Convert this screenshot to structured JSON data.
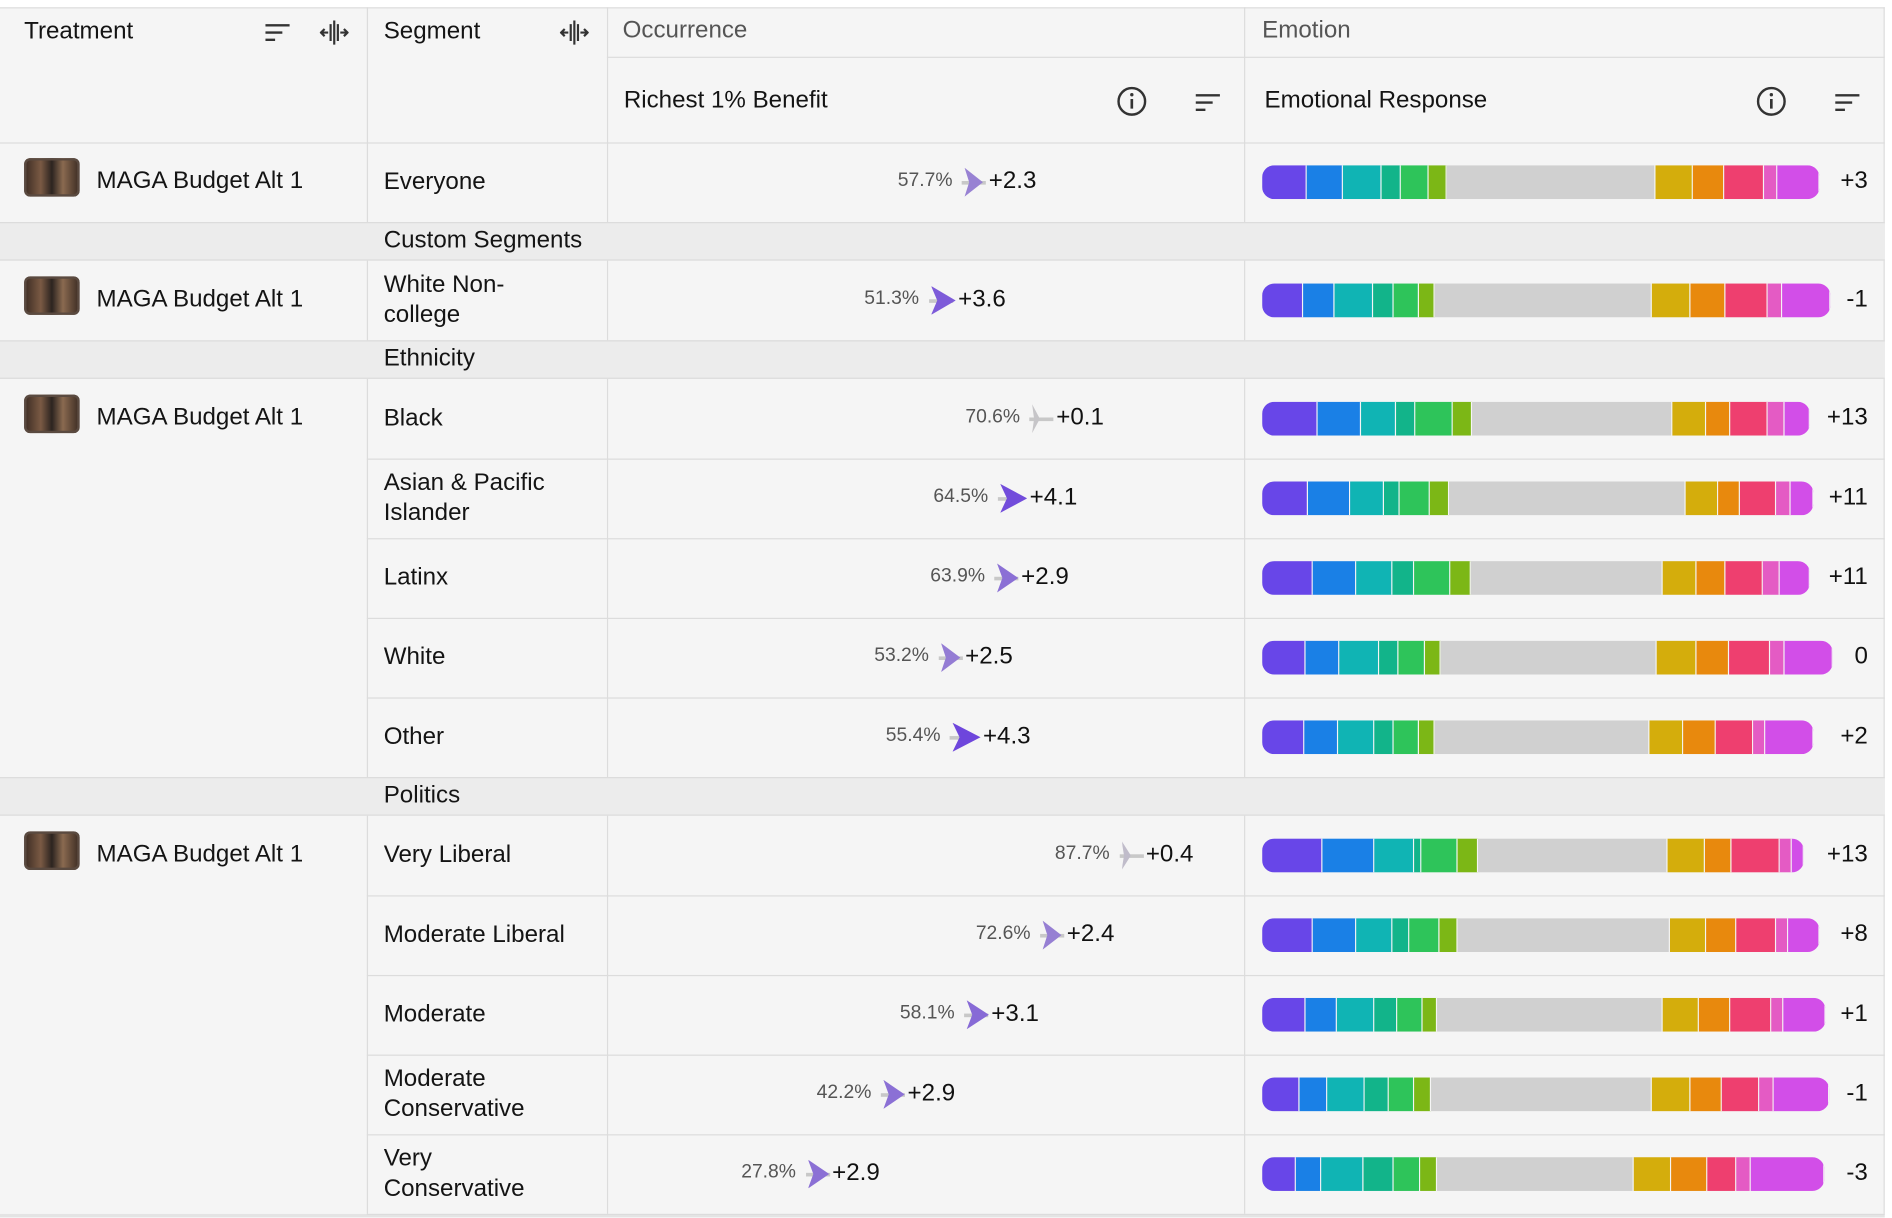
{
  "header": {
    "groups": [
      "Occurrence",
      "Emotion"
    ],
    "columns": [
      "Treatment",
      "Segment",
      "Richest 1% Benefit",
      "Emotional Response"
    ]
  },
  "emotion_colors": [
    "#6846e8",
    "#1a80e6",
    "#10b4b4",
    "#12b48a",
    "#2ec45a",
    "#7cb716",
    "#d0d0d0",
    "#d4ad0c",
    "#e8890d",
    "#ee3f6f",
    "#e45bc4",
    "#d24ee8"
  ],
  "rows": [
    {
      "treatment": "MAGA Budget Alt 1",
      "segment": "Everyone",
      "occurrence": "57.7%",
      "delta": "+2.3",
      "emotion": [
        37,
        30,
        32,
        16,
        23,
        15,
        173,
        31,
        26,
        33,
        11,
        35
      ],
      "score": "+3"
    },
    {
      "group": "Custom Segments"
    },
    {
      "treatment": "MAGA Budget Alt 1",
      "segment": "White Non-\ncollege",
      "occurrence": "51.3%",
      "delta": "+3.6",
      "emotion": [
        34,
        26,
        32,
        17,
        21,
        13,
        180,
        32,
        29,
        35,
        12,
        40
      ],
      "score": "-1"
    },
    {
      "group": "Ethnicity"
    },
    {
      "treatment": "MAGA Budget Alt 1",
      "segment": "Black",
      "occurrence": "70.6%",
      "delta": "+0.1",
      "emotion": [
        46,
        36,
        29,
        16,
        31,
        16,
        166,
        28,
        20,
        31,
        14,
        21
      ],
      "score": "+13"
    },
    {
      "segment": "Asian & Pacific\nIslander",
      "occurrence": "64.5%",
      "delta": "+4.1",
      "emotion": [
        38,
        35,
        28,
        13,
        25,
        16,
        196,
        27,
        18,
        30,
        12,
        19
      ],
      "score": "+11"
    },
    {
      "segment": "Latinx",
      "occurrence": "63.9%",
      "delta": "+2.9",
      "emotion": [
        42,
        36,
        30,
        18,
        30,
        17,
        159,
        28,
        24,
        31,
        14,
        25
      ],
      "score": "+11"
    },
    {
      "segment": "White",
      "occurrence": "53.2%",
      "delta": "+2.5",
      "emotion": [
        36,
        28,
        33,
        16,
        22,
        13,
        179,
        33,
        27,
        34,
        12,
        40
      ],
      "score": "0"
    },
    {
      "segment": "Other",
      "occurrence": "55.4%",
      "delta": "+4.3",
      "emotion": [
        35,
        28,
        30,
        16,
        21,
        13,
        178,
        28,
        27,
        31,
        10,
        40
      ],
      "score": "+2"
    },
    {
      "group": "Politics"
    },
    {
      "treatment": "MAGA Budget Alt 1",
      "segment": "Very Liberal",
      "occurrence": "87.7%",
      "delta": "+0.4",
      "emotion": [
        50,
        43,
        33,
        6,
        30,
        17,
        157,
        31,
        22,
        40,
        10,
        10
      ],
      "score": "+13"
    },
    {
      "segment": "Moderate Liberal",
      "occurrence": "72.6%",
      "delta": "+2.4",
      "emotion": [
        42,
        36,
        30,
        14,
        25,
        15,
        176,
        30,
        25,
        33,
        10,
        26
      ],
      "score": "+8"
    },
    {
      "segment": "Moderate",
      "occurrence": "58.1%",
      "delta": "+3.1",
      "emotion": [
        36,
        26,
        31,
        19,
        21,
        12,
        187,
        30,
        26,
        34,
        10,
        35
      ],
      "score": "+1"
    },
    {
      "segment": "Moderate\nConservative",
      "occurrence": "42.2%",
      "delta": "+2.9",
      "emotion": [
        31,
        23,
        31,
        20,
        21,
        14,
        183,
        32,
        26,
        31,
        12,
        46
      ],
      "score": "-1"
    },
    {
      "segment": "Very\nConservative",
      "occurrence": "27.8%",
      "delta": "+2.9",
      "emotion": [
        28,
        21,
        35,
        25,
        22,
        14,
        163,
        31,
        30,
        24,
        12,
        61
      ],
      "score": "-3"
    }
  ]
}
